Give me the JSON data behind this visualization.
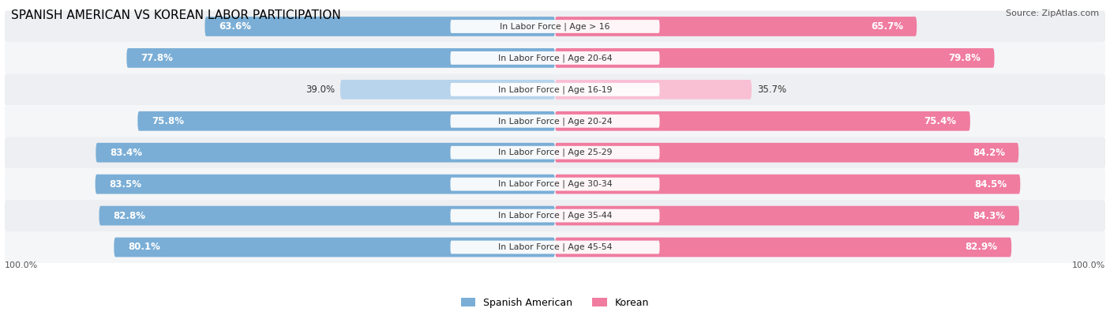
{
  "title": "SPANISH AMERICAN VS KOREAN LABOR PARTICIPATION",
  "source": "Source: ZipAtlas.com",
  "categories": [
    "In Labor Force | Age > 16",
    "In Labor Force | Age 20-64",
    "In Labor Force | Age 16-19",
    "In Labor Force | Age 20-24",
    "In Labor Force | Age 25-29",
    "In Labor Force | Age 30-34",
    "In Labor Force | Age 35-44",
    "In Labor Force | Age 45-54"
  ],
  "spanish_values": [
    63.6,
    77.8,
    39.0,
    75.8,
    83.4,
    83.5,
    82.8,
    80.1
  ],
  "korean_values": [
    65.7,
    79.8,
    35.7,
    75.4,
    84.2,
    84.5,
    84.3,
    82.9
  ],
  "spanish_color": "#7aaed6",
  "spanish_color_light": "#b8d4ec",
  "korean_color": "#f07ca0",
  "korean_color_light": "#f9c0d4",
  "max_value": 100.0,
  "label_fontsize": 8.5,
  "title_fontsize": 11,
  "bar_height": 0.62,
  "legend_labels": [
    "Spanish American",
    "Korean"
  ]
}
